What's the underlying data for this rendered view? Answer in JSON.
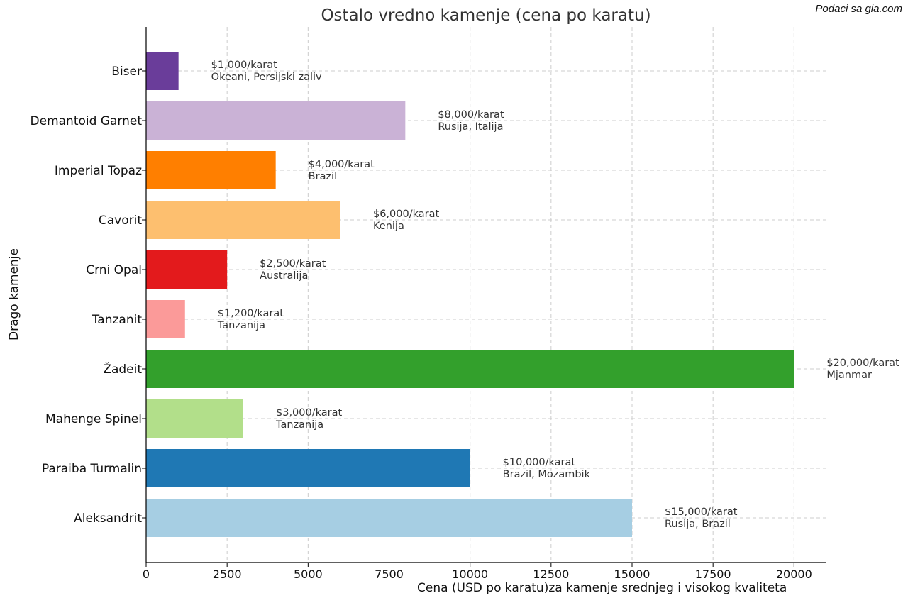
{
  "source_note": "Podaci sa gia.com",
  "chart_data": {
    "type": "bar",
    "orientation": "horizontal",
    "title": "Ostalo vredno kamenje (cena po karatu)",
    "xlabel": "Cena (USD po karatu)za kamenje srednjeg i visokog kvaliteta",
    "ylabel": "Drago kamenje",
    "xlim": [
      0,
      21000
    ],
    "xticks": [
      "0",
      "2500",
      "5000",
      "7500",
      "10000",
      "12500",
      "15000",
      "17500",
      "20000"
    ],
    "grid": true,
    "categories": [
      "Biser",
      "Demantoid Garnet",
      "Imperial Topaz",
      "Cavorit",
      "Crni Opal",
      "Tanzanit",
      "Žadeit",
      "Mahenge Spinel",
      "Paraiba Turmalin",
      "Aleksandrit"
    ],
    "values": [
      1000,
      8000,
      4000,
      6000,
      2500,
      1200,
      20000,
      3000,
      10000,
      15000
    ],
    "colors": [
      "#6a3d9a",
      "#cab2d6",
      "#ff7f00",
      "#fdbf6f",
      "#e31a1c",
      "#fb9a99",
      "#33a02c",
      "#b2df8a",
      "#1f78b4",
      "#a6cee3"
    ],
    "price_labels": [
      "$1,000/karat",
      "$8,000/karat",
      "$4,000/karat",
      "$6,000/karat",
      "$2,500/karat",
      "$1,200/karat",
      "$20,000/karat",
      "$3,000/karat",
      "$10,000/karat",
      "$15,000/karat"
    ],
    "origin_labels": [
      "Okeani, Persijski zaliv",
      "Rusija, Italija",
      "Brazil",
      "Kenija",
      "Australija",
      "Tanzanija",
      "Mjanmar",
      "Tanzanija",
      "Brazil, Mozambik",
      "Rusija, Brazil"
    ]
  }
}
